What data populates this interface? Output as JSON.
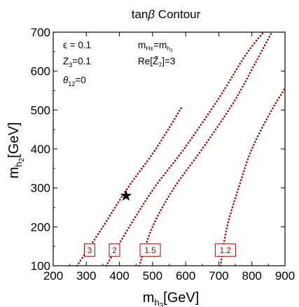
{
  "chart_data": {
    "type": "line",
    "title": "tanβ Contour",
    "title_parts": {
      "pre": "tan",
      "sym": "β",
      "post": " Contour"
    },
    "xlabel": {
      "base": "m",
      "sub_base": "h",
      "sub_sub": "3",
      "unit": "[GeV]"
    },
    "ylabel": {
      "base": "m",
      "sub_base": "h",
      "sub_sub": "2",
      "unit": "[GeV]"
    },
    "xlim": [
      200,
      900
    ],
    "ylim": [
      100,
      700
    ],
    "xticks": [
      200,
      300,
      400,
      500,
      600,
      700,
      800,
      900
    ],
    "yticks": [
      100,
      200,
      300,
      400,
      500,
      600,
      700
    ],
    "grid": false,
    "annotations": {
      "epsilon": "ϵ = 0.1",
      "z3": {
        "base": "Z",
        "sub": "3",
        "rest": "=0.1"
      },
      "theta": {
        "base": "θ",
        "sub": "12",
        "rest": "=0"
      },
      "mass": {
        "base": "m",
        "sub1": "H±",
        "mid": "=m",
        "sub2": "h",
        "sub3": "3"
      },
      "re": {
        "pre": "Re[",
        "z": "Z̃",
        "sub": "7",
        "rest": "]=3"
      }
    },
    "series": [
      {
        "label": "3",
        "points": [
          [
            272,
            100
          ],
          [
            350,
            200
          ],
          [
            425,
            300
          ],
          [
            510,
            400
          ],
          [
            590,
            510
          ]
        ],
        "label_at": [
          310,
          140
        ]
      },
      {
        "label": "2",
        "points": [
          [
            360,
            100
          ],
          [
            430,
            200
          ],
          [
            505,
            300
          ],
          [
            595,
            400
          ],
          [
            700,
            530
          ],
          [
            780,
            640
          ],
          [
            835,
            700
          ]
        ],
        "label_at": [
          385,
          140
        ]
      },
      {
        "label": "1.5",
        "points": [
          [
            460,
            100
          ],
          [
            500,
            200
          ],
          [
            565,
            300
          ],
          [
            650,
            400
          ],
          [
            745,
            520
          ],
          [
            810,
            620
          ],
          [
            860,
            700
          ]
        ],
        "label_at": [
          493,
          140
        ]
      },
      {
        "label": "1.2",
        "points": [
          [
            705,
            100
          ],
          [
            725,
            200
          ],
          [
            760,
            300
          ],
          [
            800,
            400
          ],
          [
            860,
            500
          ],
          [
            900,
            555
          ]
        ],
        "label_at": [
          720,
          140
        ]
      }
    ],
    "marker": {
      "symbol": "★",
      "x": 420,
      "y": 280
    }
  }
}
